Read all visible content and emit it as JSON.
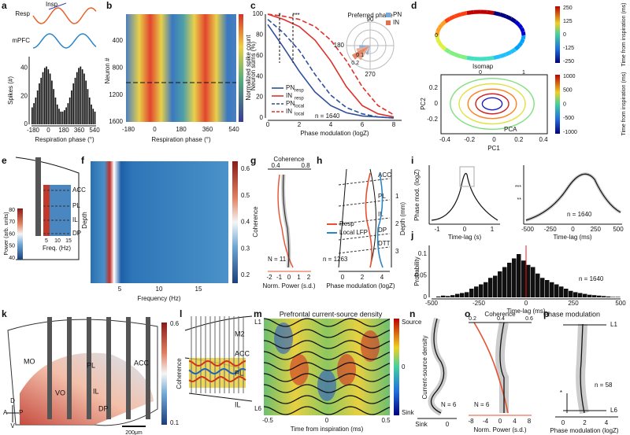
{
  "panels": {
    "a": {
      "letter": "a",
      "resp": "Resp",
      "insp": "Insp",
      "mpfc": "mPFC",
      "ylabel": "Spikes (#)",
      "yticks": [
        "0",
        "20",
        "40"
      ],
      "xticks": [
        "-180",
        "0",
        "180",
        "360",
        "540"
      ],
      "xlabel": "Respiration phase (°)",
      "xlim": [
        -180,
        540
      ],
      "ylim": [
        0,
        48
      ],
      "values": [
        12,
        15,
        19,
        24,
        29,
        33,
        37,
        40,
        41,
        39,
        36,
        31,
        25,
        19,
        14,
        11,
        9,
        9,
        10,
        12,
        15,
        19,
        24,
        29,
        33,
        37,
        40,
        41,
        39,
        36,
        31,
        25,
        19,
        14,
        11,
        9
      ]
    },
    "b": {
      "letter": "b",
      "ylabel": "Neuron #",
      "yticks": [
        "400",
        "800",
        "1200",
        "1600"
      ],
      "xticks": [
        "-180",
        "0",
        "180",
        "360",
        "540"
      ],
      "xlabel": "Respiration phase (°)",
      "colorbar_label": "Normalized spike count"
    },
    "c": {
      "letter": "c",
      "ylabel": "Neuron sums (%)",
      "yticks": [
        "0",
        "20",
        "40",
        "60",
        "80",
        "100"
      ],
      "xticks": [
        "0",
        "2",
        "4",
        "6",
        "8"
      ],
      "xlabel": "Phase modulation (logZ)",
      "stars": [
        "*",
        "***"
      ],
      "n": "n = 1640",
      "xlim": [
        0,
        8.5
      ],
      "ylim": [
        0,
        100
      ],
      "x": [
        0,
        1,
        2,
        3,
        4,
        5,
        6,
        7,
        8
      ],
      "series": [
        {
          "name": "PN",
          "sub": "resp",
          "color": "#2f4f9a",
          "dash": false,
          "values": [
            90,
            68,
            45,
            25,
            12,
            5,
            2,
            1,
            0
          ]
        },
        {
          "name": "IN",
          "sub": "resp",
          "color": "#e0302b",
          "dash": false,
          "values": [
            100,
            95,
            88,
            75,
            55,
            30,
            12,
            4,
            1
          ]
        },
        {
          "name": "PN",
          "sub": "local",
          "color": "#2f4f9a",
          "dash": true,
          "values": [
            95,
            82,
            65,
            42,
            22,
            10,
            4,
            1,
            0
          ]
        },
        {
          "name": "IN",
          "sub": "local",
          "color": "#e0302b",
          "dash": true,
          "values": [
            100,
            98,
            95,
            88,
            75,
            55,
            30,
            12,
            3
          ]
        }
      ],
      "polar": {
        "title": "Preferred phase",
        "angles": [
          "90",
          "180",
          "270"
        ],
        "radii": [
          "0.1",
          "0.2"
        ],
        "legend": [
          "PN",
          "IN"
        ]
      }
    },
    "d": {
      "letter": "d",
      "isomap": "Isomap",
      "pca": "PCA",
      "xlabel": "PC1",
      "ylabel": "PC2",
      "top_xticks": [
        "0",
        "1"
      ],
      "top_yticks": [
        "0"
      ],
      "xticks": [
        "-0.4",
        "-0.2",
        "0",
        "0.2",
        "0.4"
      ],
      "yticks": [
        "0.2",
        "0",
        "-0.2"
      ],
      "cbar1_ticks": [
        "250",
        "125",
        "0",
        "-125",
        "-250"
      ],
      "cbar1_label": "Time from inspiration (ms)",
      "cbar2_ticks": [
        "1000",
        "500",
        "0",
        "-500",
        "-1000"
      ],
      "cbar2_label": "Time from inspiration (ms)"
    },
    "e": {
      "letter": "e",
      "regions": [
        "ACC",
        "PL",
        "IL",
        "DP"
      ],
      "ylabel": "Power (arb. units)",
      "yticks": [
        "80",
        "70",
        "60",
        "50",
        "40"
      ],
      "xticks": [
        "5",
        "10",
        "15"
      ],
      "xlabel": "Freq. (Hz)"
    },
    "f": {
      "letter": "f",
      "ylabel": "Depth",
      "xticks": [
        "5",
        "10",
        "15"
      ],
      "xlabel": "Frequency (Hz)",
      "cbar_ticks": [
        "0.6",
        "0.5",
        "0.4",
        "0.3",
        "0.2"
      ],
      "cbar_label": "Coherence"
    },
    "g": {
      "letter": "g",
      "top_label": "Coherence",
      "top_ticks": [
        "0.4",
        "0.8"
      ],
      "xticks": [
        "-2",
        "-1",
        "0",
        "1",
        "2"
      ],
      "xlabel": "Norm. Power (s.d.)",
      "n": "N = 11"
    },
    "h": {
      "letter": "h",
      "regions": [
        "ACC",
        "PL",
        "IL",
        "DP",
        "DTT"
      ],
      "legend": [
        "Resp",
        "Local LFP"
      ],
      "depth_ticks": [
        "1",
        "2",
        "3"
      ],
      "ylabel": "Depth (mm)",
      "xticks": [
        "0",
        "2",
        "4"
      ],
      "xlabel": "Phase modulation (logZ)",
      "n": "n = 1263"
    },
    "i": {
      "letter": "i",
      "ylabel": "Phase mod. (logZ)",
      "xticks": [
        "-1",
        "0",
        "1"
      ],
      "xlabel": "Time-lag (s)",
      "xticks2": [
        "-500",
        "-250",
        "0",
        "250",
        "500"
      ],
      "xlabel2": "Time-lag (ms)",
      "n": "n = 1640",
      "stars": [
        "***",
        "**"
      ]
    },
    "j": {
      "letter": "j",
      "ylabel": "Probability",
      "yticks": [
        "0.1",
        "0.05",
        "0"
      ],
      "xticks": [
        "-500",
        "-250",
        "0",
        "250",
        "500"
      ],
      "xlabel": "Time-lag (ms)",
      "n": "n = 1640",
      "xlim": [
        -500,
        500
      ],
      "ylim": [
        0,
        0.12
      ],
      "values": [
        0,
        0.002,
        0.004,
        0.003,
        0.005,
        0.008,
        0.01,
        0.012,
        0.02,
        0.025,
        0.03,
        0.035,
        0.045,
        0.05,
        0.06,
        0.07,
        0.08,
        0.09,
        0.1,
        0.085,
        0.075,
        0.07,
        0.055,
        0.045,
        0.04,
        0.035,
        0.03,
        0.025,
        0.02,
        0.015,
        0.012,
        0.01,
        0.008,
        0.006,
        0.005,
        0.004,
        0.003,
        0.002,
        0.001,
        0.001
      ]
    },
    "k": {
      "letter": "k",
      "regions": [
        "MO",
        "PL",
        "ACC",
        "VO",
        "IL",
        "DP"
      ],
      "cbar_ticks": [
        "0.6",
        "0.1"
      ],
      "cbar_label": "Coherence",
      "scale": "200μm",
      "compass": [
        "D",
        "A",
        "P",
        "V"
      ]
    },
    "l": {
      "letter": "l",
      "regions": [
        "M2",
        "ACC",
        "PL",
        "IL"
      ]
    },
    "m": {
      "letter": "m",
      "title": "Prefrontal current-source density",
      "layers": [
        "L1",
        "L6"
      ],
      "cbar_labels": [
        "Source",
        "0",
        "Sink"
      ],
      "cbar_label": "Current-source density",
      "xticks": [
        "-0.5",
        "0",
        "0.5"
      ],
      "xlabel": "Time from inspiration (ms)"
    },
    "n": {
      "letter": "n",
      "xticks": [
        "Sink",
        "0"
      ],
      "n": "N = 6"
    },
    "o": {
      "letter": "o",
      "title": "Coherence",
      "top_ticks": [
        "0.2",
        "0.4",
        "0.6"
      ],
      "xticks": [
        "-8",
        "-4",
        "0",
        "4",
        "8"
      ],
      "xlabel": "Norm. Power (s.d.)",
      "n": "N = 6"
    },
    "p": {
      "letter": "p",
      "title": "Phase modulation",
      "layers": [
        "L1",
        "L6"
      ],
      "star": "*",
      "n": "n = 58",
      "xticks": [
        "0",
        "2",
        "4"
      ],
      "xlabel": "Phase modulation (logZ)"
    }
  }
}
